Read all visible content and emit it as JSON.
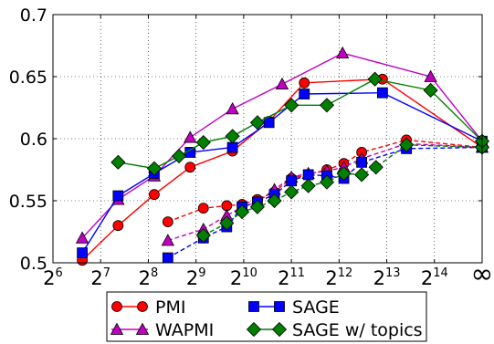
{
  "chart_data": {
    "type": "line",
    "xscale": "log2",
    "grid": true,
    "legend_position": "bottom",
    "ylim": [
      0.5,
      0.7
    ],
    "y_ticks": [
      "0.5",
      "0.55",
      "0.6",
      "0.65",
      "0.7"
    ],
    "x_ticks": [
      {
        "base": "2",
        "exp": "6"
      },
      {
        "base": "2",
        "exp": "7"
      },
      {
        "base": "2",
        "exp": "8"
      },
      {
        "base": "2",
        "exp": "9"
      },
      {
        "base": "2",
        "exp": "10"
      },
      {
        "base": "2",
        "exp": "11"
      },
      {
        "base": "2",
        "exp": "12"
      },
      {
        "base": "2",
        "exp": "13"
      },
      {
        "base": "2",
        "exp": "14"
      },
      {
        "base": "∞",
        "exp": ""
      }
    ],
    "series": [
      {
        "name": "PMI",
        "color": "#ff0000",
        "marker": "circle",
        "solid": [
          [
            98,
            0.502
          ],
          [
            165,
            0.53
          ],
          [
            279,
            0.555
          ],
          [
            470,
            0.577
          ],
          [
            870,
            0.59
          ],
          [
            1480,
            0.614
          ],
          [
            2470,
            0.645
          ],
          [
            7700,
            0.648
          ],
          [
            65536,
            0.593
          ]
        ],
        "dashed": [
          [
            340,
            0.533
          ],
          [
            570,
            0.544
          ],
          [
            800,
            0.546
          ],
          [
            1000,
            0.547
          ],
          [
            1250,
            0.551
          ],
          [
            1600,
            0.557
          ],
          [
            2050,
            0.568
          ],
          [
            2620,
            0.571
          ],
          [
            3430,
            0.575
          ],
          [
            4390,
            0.58
          ],
          [
            5690,
            0.589
          ],
          [
            10900,
            0.599
          ],
          [
            65536,
            0.593
          ]
        ]
      },
      {
        "name": "WAPMI",
        "color": "#c000c0",
        "marker": "triangle",
        "solid": [
          [
            98,
            0.52
          ],
          [
            165,
            0.551
          ],
          [
            279,
            0.57
          ],
          [
            470,
            0.601
          ],
          [
            870,
            0.624
          ],
          [
            1790,
            0.644
          ],
          [
            4310,
            0.669
          ],
          [
            15500,
            0.65
          ],
          [
            65536,
            0.598
          ]
        ],
        "dashed": [
          [
            340,
            0.518
          ],
          [
            570,
            0.527
          ],
          [
            800,
            0.538
          ],
          [
            1000,
            0.545
          ],
          [
            1250,
            0.549
          ],
          [
            1600,
            0.559
          ],
          [
            2050,
            0.569
          ],
          [
            2620,
            0.572
          ],
          [
            3430,
            0.574
          ],
          [
            4390,
            0.577
          ],
          [
            5690,
            0.584
          ],
          [
            10900,
            0.596
          ],
          [
            65536,
            0.593
          ]
        ]
      },
      {
        "name": "SAGE",
        "color": "#0000ff",
        "marker": "square",
        "solid": [
          [
            98,
            0.508
          ],
          [
            165,
            0.554
          ],
          [
            279,
            0.572
          ],
          [
            470,
            0.589
          ],
          [
            870,
            0.593
          ],
          [
            1480,
            0.613
          ],
          [
            2470,
            0.636
          ],
          [
            7700,
            0.637
          ],
          [
            65536,
            0.598
          ]
        ],
        "dashed": [
          [
            340,
            0.504
          ],
          [
            570,
            0.52
          ],
          [
            800,
            0.529
          ],
          [
            1000,
            0.545
          ],
          [
            1250,
            0.549
          ],
          [
            1600,
            0.555
          ],
          [
            2050,
            0.566
          ],
          [
            2620,
            0.571
          ],
          [
            3430,
            0.57
          ],
          [
            4390,
            0.568
          ],
          [
            5690,
            0.581
          ],
          [
            10900,
            0.592
          ],
          [
            65536,
            0.593
          ]
        ]
      },
      {
        "name": "SAGE w/ topics",
        "color": "#007f00",
        "marker": "diamond",
        "solid": [
          [
            165,
            0.581
          ],
          [
            279,
            0.576
          ],
          [
            400,
            0.586
          ],
          [
            570,
            0.597
          ],
          [
            870,
            0.602
          ],
          [
            1250,
            0.613
          ],
          [
            2050,
            0.627
          ],
          [
            3430,
            0.627
          ],
          [
            6900,
            0.648
          ],
          [
            15500,
            0.639
          ],
          [
            65536,
            0.598
          ]
        ],
        "dashed": [
          [
            570,
            0.522
          ],
          [
            800,
            0.532
          ],
          [
            1000,
            0.541
          ],
          [
            1250,
            0.545
          ],
          [
            1600,
            0.55
          ],
          [
            2050,
            0.557
          ],
          [
            2620,
            0.562
          ],
          [
            3430,
            0.565
          ],
          [
            4390,
            0.572
          ],
          [
            5690,
            0.571
          ],
          [
            7000,
            0.577
          ],
          [
            10900,
            0.595
          ],
          [
            65536,
            0.593
          ]
        ]
      }
    ]
  }
}
